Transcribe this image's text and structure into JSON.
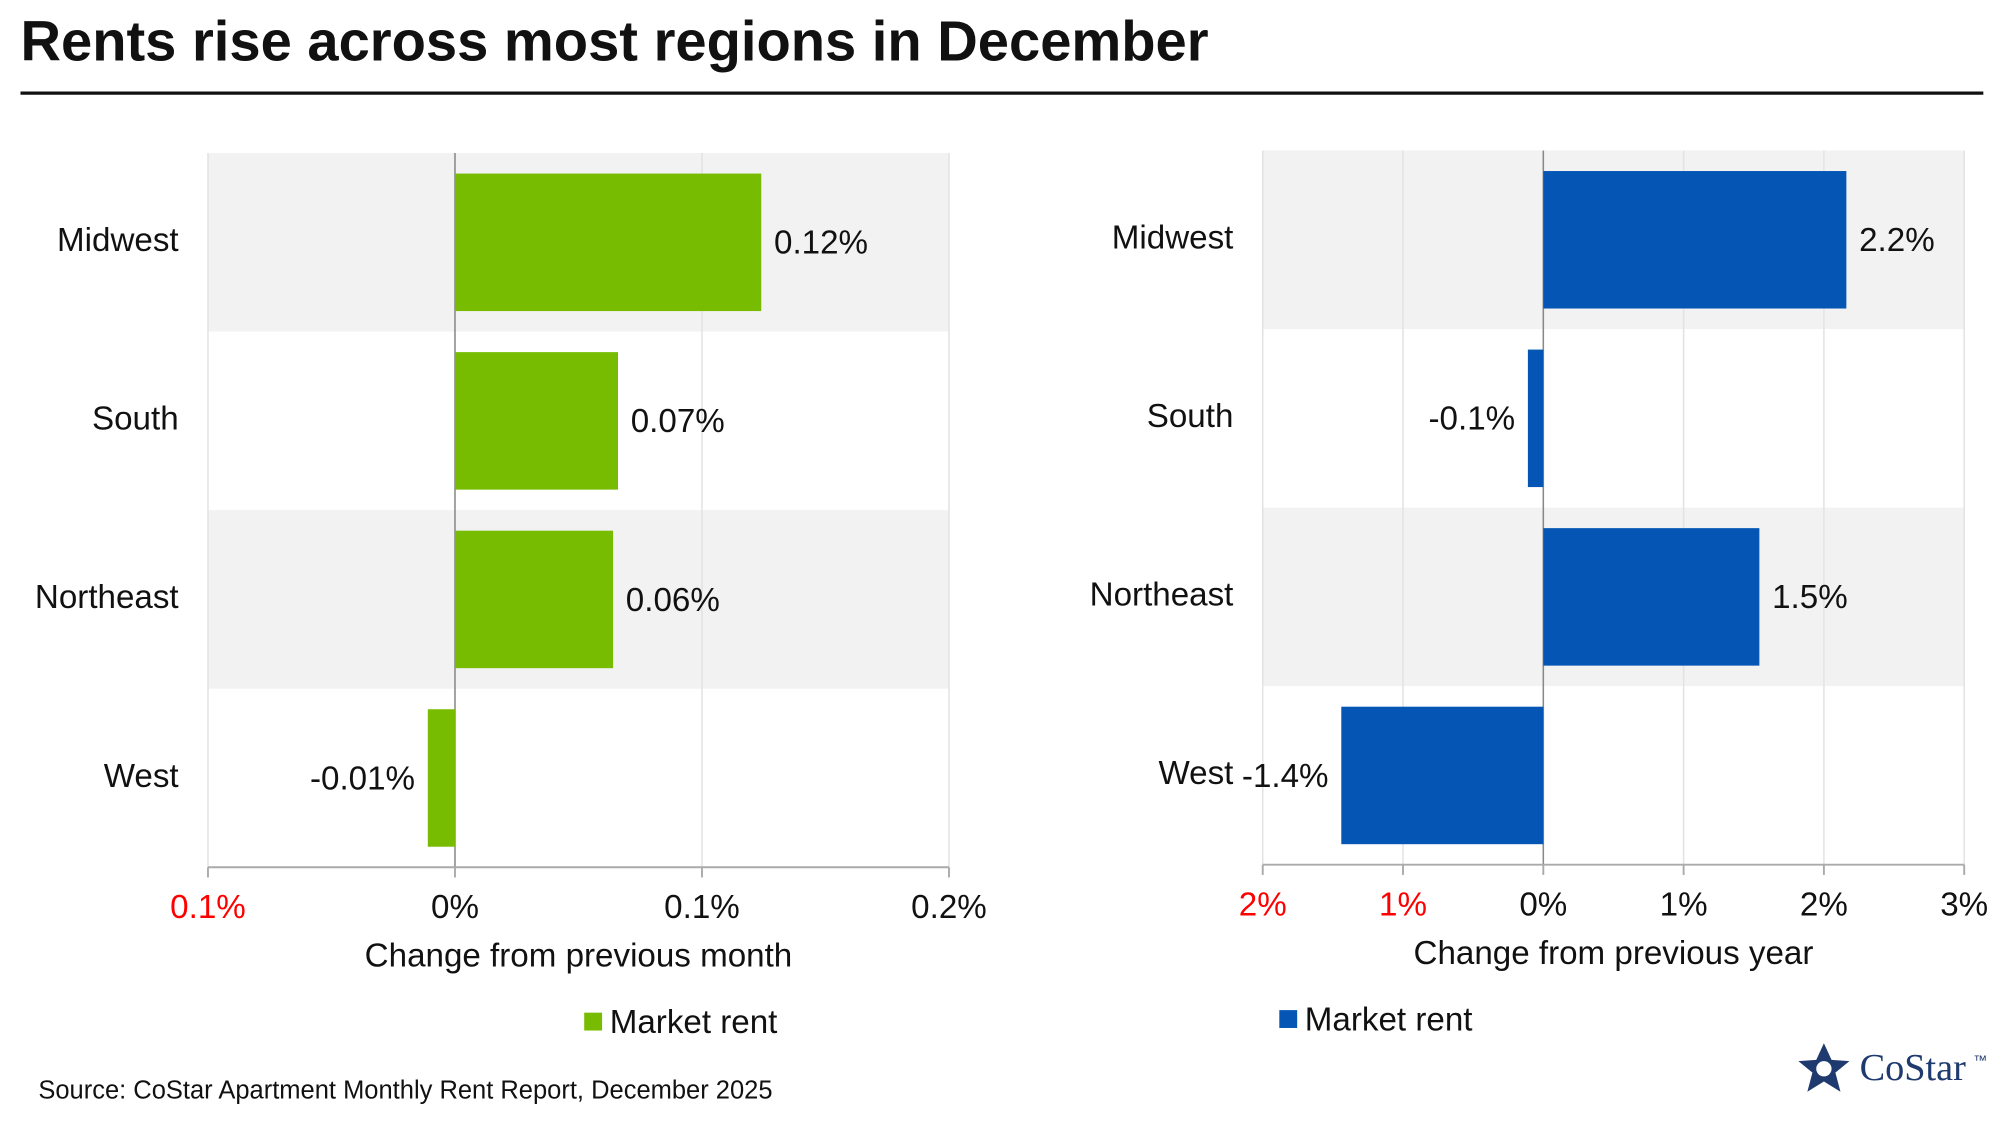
{
  "title": "Rents rise across most regions in December",
  "source": "Source: CoStar Apartment Monthly Rent Report, December 2025",
  "logo": "CoStar",
  "logo_mark": "™",
  "chart_data": [
    {
      "type": "bar",
      "orientation": "horizontal",
      "categories": [
        "Midwest",
        "South",
        "Northeast",
        "West"
      ],
      "series": [
        {
          "name": "Market rent",
          "color": "#77bc00",
          "values": [
            0.124,
            0.066,
            0.064,
            -0.011
          ],
          "value_labels": [
            "0.12%",
            "0.07%",
            "0.06%",
            "-0.01%"
          ]
        }
      ],
      "xlim": [
        -0.1,
        0.2
      ],
      "xticks": [
        {
          "value": -0.1,
          "label": "0.1%"
        },
        {
          "value": 0,
          "label": "0%"
        },
        {
          "value": 0.1,
          "label": "0.1%"
        },
        {
          "value": 0.2,
          "label": "0.2%"
        }
      ],
      "xlabel": "Change from previous month",
      "negative_tick_color": "#ff0000",
      "grid": true,
      "row_shading": "#f2f2f2"
    },
    {
      "type": "bar",
      "orientation": "horizontal",
      "categories": [
        "Midwest",
        "South",
        "Northeast",
        "West"
      ],
      "series": [
        {
          "name": "Market rent",
          "color": "#0455b4",
          "values": [
            2.16,
            -0.11,
            1.54,
            -1.44
          ],
          "value_labels": [
            "2.2%",
            "-0.1%",
            "1.5%",
            "-1.4%"
          ]
        }
      ],
      "xlim": [
        -2,
        3
      ],
      "xticks": [
        {
          "value": -2,
          "label": "2%"
        },
        {
          "value": -1,
          "label": "1%"
        },
        {
          "value": 0,
          "label": "0%"
        },
        {
          "value": 1,
          "label": "1%"
        },
        {
          "value": 2,
          "label": "2%"
        },
        {
          "value": 3,
          "label": "3%"
        }
      ],
      "xlabel": "Change from previous year",
      "negative_tick_color": "#ff0000",
      "grid": true,
      "row_shading": "#f2f2f2"
    }
  ]
}
